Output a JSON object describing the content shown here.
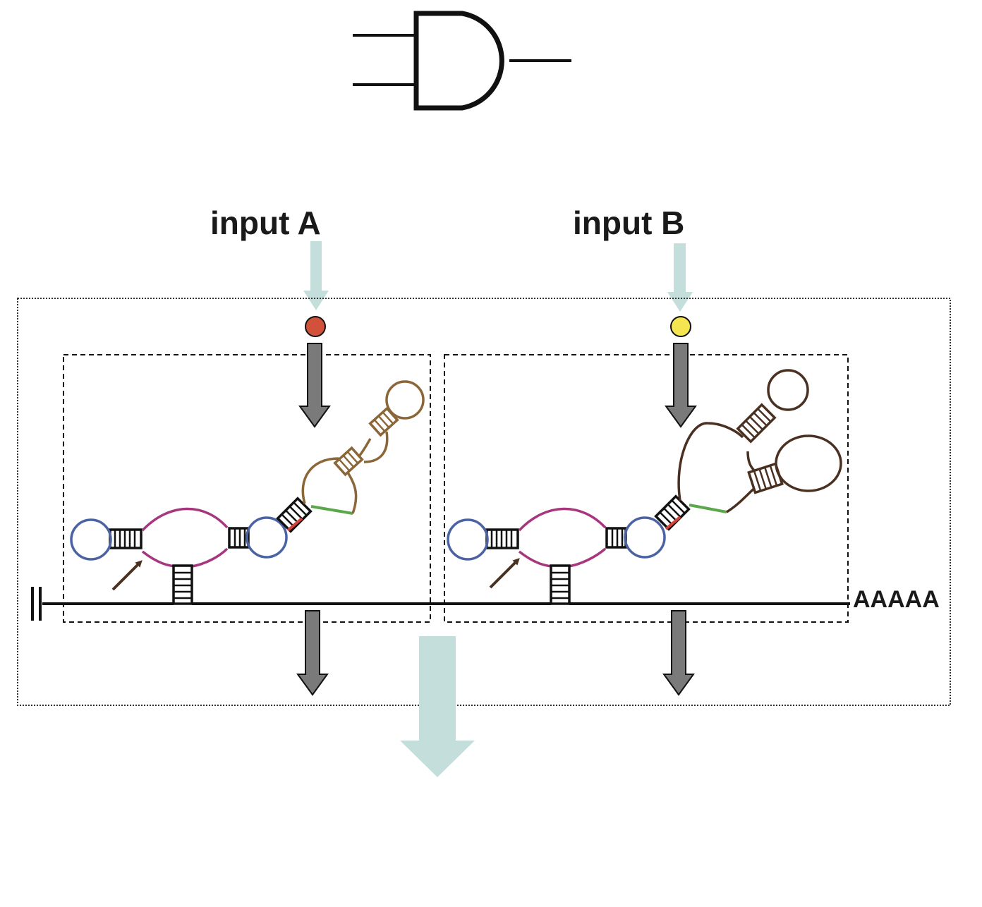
{
  "gate": {
    "type": "AND",
    "icon": "and-gate-icon"
  },
  "inputs": [
    {
      "label": "input A",
      "ligand_color": "#d1513a"
    },
    {
      "label": "input B",
      "ligand_color": "#f5e651"
    }
  ],
  "mrna": {
    "tail_label": "AAAAA",
    "cap_icon": "cap-icon"
  },
  "colors": {
    "input_arrow": "#c4dfdb",
    "block_arrow": "#7a7a7a",
    "loop_blue": "#4b63a3",
    "loop_magenta": "#a6367e",
    "aptamer_a": "#8b6637",
    "aptamer_b": "#4a3020",
    "linker_green": "#5aa84a",
    "linker_red": "#d4413a",
    "cleavage_arrow": "#4a3020"
  }
}
